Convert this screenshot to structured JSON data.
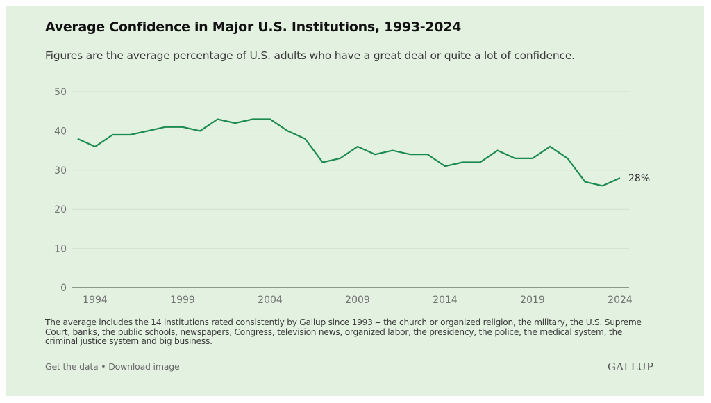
{
  "header": {
    "title": "Average Confidence in Major U.S. Institutions, 1993-2024",
    "subtitle": "Figures are the average percentage of U.S. adults who have a great deal or quite a lot of confidence."
  },
  "footnote": "The average includes the 14 institutions rated consistently by Gallup since 1993 -- the church or organized religion, the military, the U.S. Supreme Court, banks, the public schools, newspapers, Congress, television news, organized labor, the presidency, the police, the medical system, the criminal justice system and big business.",
  "links": {
    "get_data": "Get the data",
    "separator": " • ",
    "download": "Download image"
  },
  "logo": "GALLUP",
  "colors": {
    "background": "#e2f1e0",
    "line": "#1b8a4f",
    "grid": "#cfe0cc",
    "axis": "#5a6a58"
  },
  "chart_data": {
    "type": "line",
    "title": "Average Confidence in Major U.S. Institutions, 1993-2024",
    "subtitle": "Figures are the average percentage of U.S. adults who have a great deal or quite a lot of confidence.",
    "xlabel": "",
    "ylabel": "",
    "x": [
      1993,
      1994,
      1995,
      1996,
      1997,
      1998,
      1999,
      2000,
      2001,
      2002,
      2003,
      2004,
      2005,
      2006,
      2007,
      2008,
      2009,
      2010,
      2011,
      2012,
      2013,
      2014,
      2015,
      2016,
      2017,
      2018,
      2019,
      2020,
      2021,
      2022,
      2023,
      2024
    ],
    "series": [
      {
        "name": "Average confidence (%)",
        "values": [
          38,
          36,
          39,
          39,
          40,
          41,
          41,
          40,
          43,
          42,
          43,
          43,
          40,
          38,
          32,
          33,
          36,
          34,
          35,
          34,
          34,
          31,
          32,
          32,
          35,
          33,
          33,
          36,
          33,
          27,
          26,
          28
        ]
      }
    ],
    "end_label": "28%",
    "ylim": [
      0,
      50
    ],
    "yticks": [
      0,
      10,
      20,
      30,
      40,
      50
    ],
    "xticks": [
      1994,
      1999,
      2004,
      2009,
      2014,
      2019,
      2024
    ],
    "xlim": [
      1993,
      2024
    ],
    "grid": true,
    "legend": "none"
  }
}
